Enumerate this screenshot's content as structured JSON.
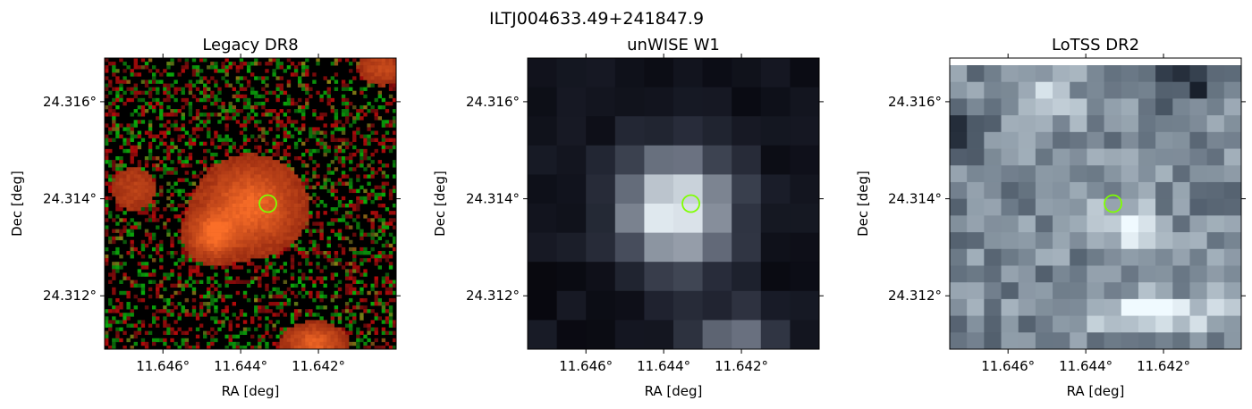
{
  "figure_title": "ILTJ004633.49+241847.9",
  "chart_data": [
    {
      "type": "heatmap",
      "title": "Legacy DR8",
      "xlabel": "RA [deg]",
      "ylabel": "Dec [deg]",
      "x_ticks": [
        "11.646°",
        "11.644°",
        "11.642°"
      ],
      "y_ticks": [
        "24.316°",
        "24.314°",
        "24.312°"
      ],
      "xlim": [
        11.6475,
        11.64
      ],
      "ylim": [
        24.3109,
        24.3169
      ],
      "marker": {
        "shape": "circle",
        "ra": 11.6433,
        "dec": 24.3139,
        "color": "#7fff00"
      },
      "grid": false,
      "colormap": "rgb-composite"
    },
    {
      "type": "heatmap",
      "title": "unWISE W1",
      "xlabel": "RA [deg]",
      "ylabel": "Dec [deg]",
      "x_ticks": [
        "11.646°",
        "11.644°",
        "11.642°"
      ],
      "y_ticks": [
        "24.316°",
        "24.314°",
        "24.312°"
      ],
      "xlim": [
        11.6475,
        11.64
      ],
      "ylim": [
        24.3109,
        24.3169
      ],
      "marker": {
        "shape": "circle",
        "ra": 11.6433,
        "dec": 24.3139,
        "color": "#7fff00"
      },
      "grid": false,
      "colormap": "bone"
    },
    {
      "type": "heatmap",
      "title": "LoTSS DR2",
      "xlabel": "RA [deg]",
      "ylabel": "Dec [deg]",
      "x_ticks": [
        "11.646°",
        "11.644°",
        "11.642°"
      ],
      "y_ticks": [
        "24.316°",
        "24.314°",
        "24.312°"
      ],
      "xlim": [
        11.6475,
        11.64
      ],
      "ylim": [
        24.3109,
        24.3169
      ],
      "marker": {
        "shape": "circle",
        "ra": 11.6433,
        "dec": 24.3139,
        "color": "#7fff00"
      },
      "grid": false,
      "colormap": "bone"
    }
  ]
}
